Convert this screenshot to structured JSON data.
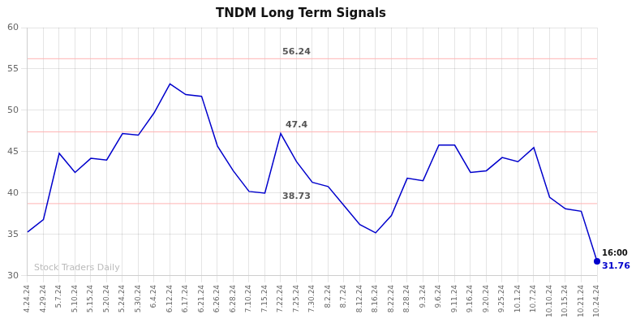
{
  "chart_data": {
    "type": "line",
    "title": "TNDM Long Term Signals",
    "categories": [
      "4.24.24",
      "4.29.24",
      "5.7.24",
      "5.10.24",
      "5.15.24",
      "5.20.24",
      "5.24.24",
      "5.30.24",
      "6.4.24",
      "6.12.24",
      "6.17.24",
      "6.21.24",
      "6.26.24",
      "6.28.24",
      "7.10.24",
      "7.15.24",
      "7.22.24",
      "7.25.24",
      "7.30.24",
      "8.2.24",
      "8.7.24",
      "8.12.24",
      "8.16.24",
      "8.22.24",
      "8.28.24",
      "9.3.24",
      "9.6.24",
      "9.11.24",
      "9.16.24",
      "9.20.24",
      "9.25.24",
      "10.1.24",
      "10.7.24",
      "10.10.24",
      "10.15.24",
      "10.21.24",
      "10.24.24"
    ],
    "values": [
      35.3,
      36.8,
      44.8,
      42.5,
      44.2,
      44.0,
      47.2,
      47.0,
      49.7,
      53.2,
      51.9,
      51.7,
      45.7,
      42.7,
      40.2,
      40.0,
      47.2,
      43.8,
      41.3,
      40.8,
      38.5,
      36.2,
      35.2,
      37.3,
      41.8,
      41.5,
      45.8,
      45.8,
      42.5,
      42.7,
      44.3,
      43.8,
      45.5,
      39.5,
      38.1,
      37.8,
      31.76
    ],
    "color": "#0000cc",
    "hlines": [
      {
        "value": 56.24,
        "label": "56.24",
        "color": "#ffb3b3"
      },
      {
        "value": 47.4,
        "label": "47.4",
        "color": "#ffb3b3"
      },
      {
        "value": 38.73,
        "label": "38.73",
        "color": "#ffb3b3"
      }
    ],
    "annotations": [
      {
        "text": "16:00",
        "x": "10.24.24",
        "y": 31.76
      },
      {
        "text": "31.76",
        "x": "10.24.24",
        "y": 31.76
      },
      {
        "text": "Stock Traders Daily"
      }
    ],
    "ylim": [
      30,
      60
    ],
    "yticks": [
      30,
      35,
      40,
      45,
      50,
      55,
      60
    ],
    "grid": true
  }
}
